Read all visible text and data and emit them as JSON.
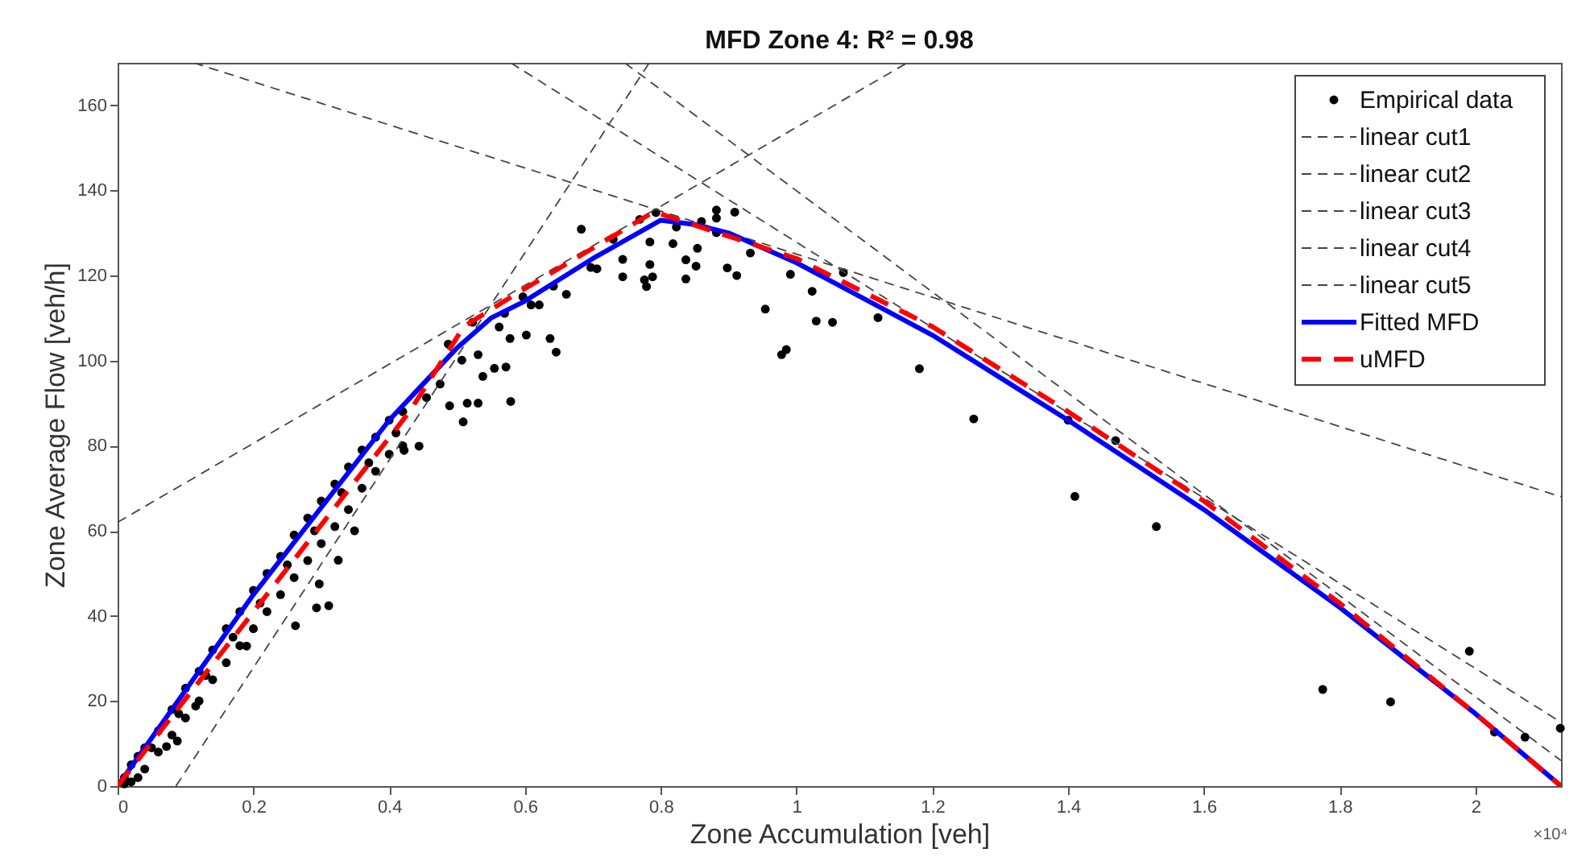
{
  "chart_data": {
    "type": "scatter",
    "title": "MFD Zone 4: R² = 0.98",
    "xlabel": "Zone Accumulation [veh]",
    "ylabel": "Zone Average Flow [veh/h]",
    "xlim": [
      0,
      2.126
    ],
    "ylim": [
      0,
      170
    ],
    "xticks": [
      0,
      0.2,
      0.4,
      0.6,
      0.8,
      1,
      1.2,
      1.4,
      1.6,
      1.8,
      2
    ],
    "yticks": [
      0,
      20,
      40,
      60,
      80,
      100,
      120,
      140,
      160
    ],
    "grid": false,
    "legend": "top right",
    "annotations": [
      "×10⁴"
    ],
    "series": [
      {
        "name": "Empirical data",
        "color": "#000000",
        "marker": "circle",
        "x": [
          0.01,
          0.02,
          0.03,
          0.04,
          0.06,
          0.08,
          0.1,
          0.12,
          0.14,
          0.16,
          0.18,
          0.2,
          0.22,
          0.24,
          0.26,
          0.28,
          0.3,
          0.32,
          0.34,
          0.36,
          0.38,
          0.4,
          0.42,
          0.01,
          0.02,
          0.03,
          0.04,
          0.06,
          0.08,
          0.1,
          0.12,
          0.14,
          0.16,
          0.18,
          0.2,
          0.22,
          0.24,
          0.26,
          0.28,
          0.3,
          0.32,
          0.34,
          0.36,
          0.38,
          0.4,
          0.42,
          0.05,
          0.09,
          0.13,
          0.17,
          0.21,
          0.25,
          0.29,
          0.33,
          0.37,
          0.41,
          0.349,
          0.325,
          0.297,
          0.293,
          0.311,
          0.262,
          0.19,
          0.115,
          0.088,
          0.072,
          0.444,
          0.422,
          0.455,
          0.475,
          0.489,
          0.509,
          0.515,
          0.531,
          0.555,
          0.572,
          0.579,
          0.487,
          0.507,
          0.523,
          0.531,
          0.538,
          0.562,
          0.57,
          0.578,
          0.597,
          0.602,
          0.609,
          0.621,
          0.637,
          0.642,
          0.646,
          0.661,
          0.683,
          0.697,
          0.706,
          0.73,
          0.744,
          0.744,
          0.769,
          0.776,
          0.779,
          0.784,
          0.784,
          0.788,
          0.793,
          0.818,
          0.823,
          0.837,
          0.837,
          0.852,
          0.854,
          0.86,
          0.882,
          0.882,
          0.882,
          0.898,
          0.909,
          0.912,
          0.932,
          0.954,
          0.978,
          0.985,
          0.991,
          1.023,
          1.029,
          1.053,
          1.069,
          1.12,
          1.181,
          1.261,
          1.4,
          1.41,
          1.47,
          1.53,
          1.775,
          1.875,
          1.991,
          2.028,
          2.073,
          2.125
        ],
        "values": [
          2,
          5,
          7,
          9,
          13,
          18,
          23,
          27,
          32,
          37,
          41,
          46,
          50,
          54,
          59,
          63,
          67,
          71,
          75,
          79,
          82,
          86,
          88,
          0.5,
          1,
          2,
          4,
          8,
          12,
          16,
          20,
          25,
          29,
          33,
          37,
          41,
          45,
          49,
          53,
          57,
          61,
          65,
          70,
          74,
          78,
          80,
          9,
          17,
          26,
          35,
          43,
          52,
          60,
          69,
          76,
          83,
          60,
          53.1,
          47.5,
          41.9,
          42.4,
          37.7,
          32.9,
          18.8,
          10.6,
          9.3,
          79.9,
          78.9,
          91.3,
          94.5,
          89.4,
          85.6,
          90,
          90,
          98.2,
          98.5,
          90.4,
          103.9,
          100.1,
          109,
          101.4,
          96.3,
          107.9,
          111.1,
          105.2,
          115,
          106,
          113.1,
          113.1,
          105.2,
          117.5,
          102,
          115.6,
          130.9,
          121.9,
          121.6,
          128.5,
          123.8,
          119.7,
          133.2,
          119,
          117.4,
          127.9,
          122.6,
          119.7,
          134.8,
          127.5,
          131.4,
          123.7,
          119.2,
          122.2,
          126.4,
          132.7,
          135.4,
          133.5,
          130.1,
          121.8,
          134.9,
          120,
          125.3,
          112.1,
          101.4,
          102.6,
          120.3,
          116.3,
          109.3,
          109,
          120.7,
          110.1,
          98.1,
          86.3,
          86,
          68.1,
          81.2,
          61,
          22.7,
          19.8,
          31.7,
          12.7,
          11.5,
          13.6
        ]
      },
      {
        "name": "linear cut1",
        "type": "line",
        "color": "#444444",
        "line_style": "dashed",
        "x": [
          0,
          1.163
        ],
        "values": [
          62,
          170
        ]
      },
      {
        "name": "linear cut2",
        "type": "line",
        "color": "#444444",
        "line_style": "dashed",
        "x": [
          0.086,
          0.783
        ],
        "values": [
          0,
          170
        ]
      },
      {
        "name": "linear cut3",
        "type": "line",
        "color": "#444444",
        "line_style": "dashed",
        "x": [
          0.112,
          2.126
        ],
        "values": [
          170,
          68
        ]
      },
      {
        "name": "linear cut4",
        "type": "line",
        "color": "#444444",
        "line_style": "dashed",
        "x": [
          0.579,
          2.126
        ],
        "values": [
          170,
          15
        ]
      },
      {
        "name": "linear cut5",
        "type": "line",
        "color": "#444444",
        "line_style": "dashed",
        "x": [
          0.747,
          2.126
        ],
        "values": [
          170,
          6
        ]
      },
      {
        "name": "Fitted MFD",
        "type": "line",
        "color": "#0000ff",
        "line_style": "solid",
        "x": [
          0,
          0.2,
          0.4,
          0.5,
          0.55,
          0.6,
          0.7,
          0.8,
          0.85,
          0.9,
          1.0,
          1.2,
          1.4,
          1.6,
          1.8,
          2.0,
          2.126
        ],
        "values": [
          0,
          45,
          86,
          103,
          110,
          114,
          124,
          133,
          132,
          130,
          123,
          106,
          86,
          65,
          42,
          17,
          0
        ]
      },
      {
        "name": "uMFD",
        "type": "line",
        "color": "#ff0000",
        "line_style": "dashed",
        "x": [
          0,
          0.43,
          0.51,
          0.58,
          0.79,
          1.0,
          1.2,
          1.4,
          1.6,
          1.8,
          2.0,
          2.126
        ],
        "values": [
          0,
          88,
          108,
          115,
          135,
          124,
          108,
          88,
          67,
          43,
          17,
          0
        ]
      }
    ]
  }
}
